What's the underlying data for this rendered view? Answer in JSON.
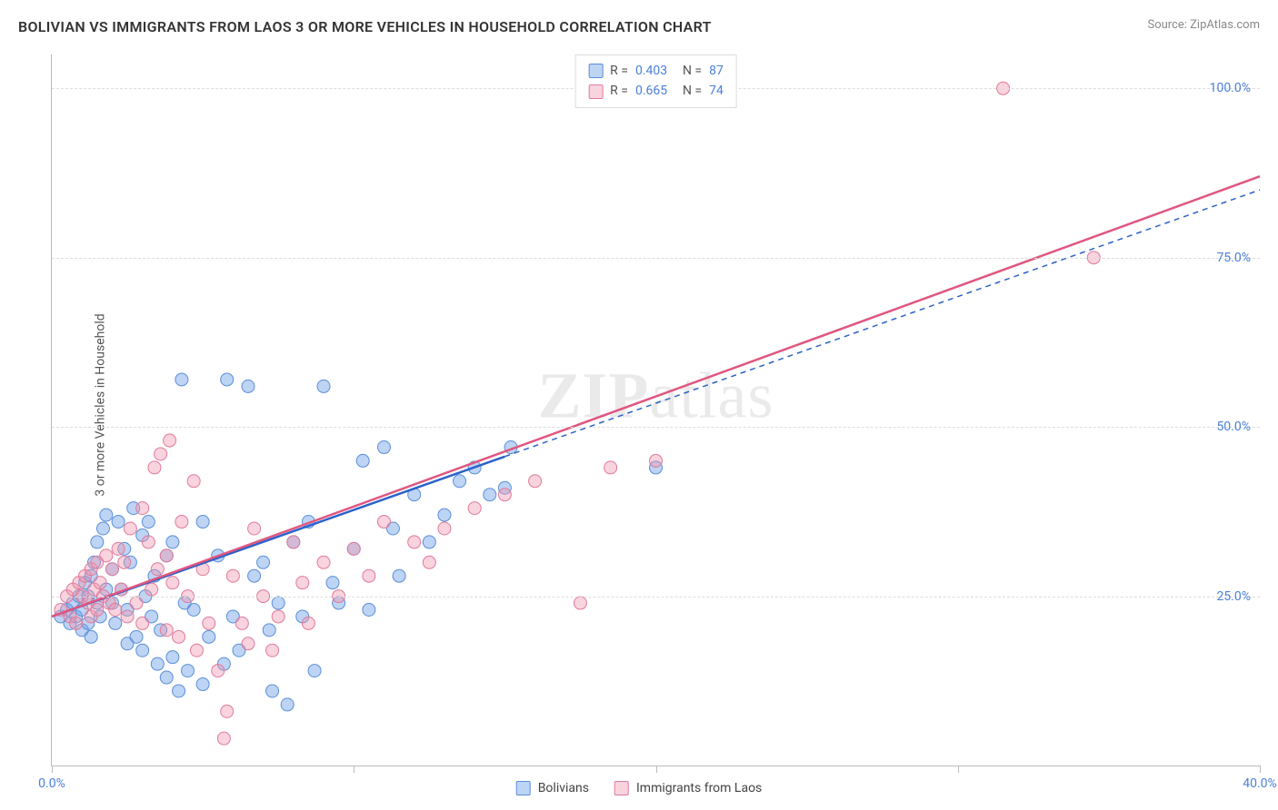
{
  "header": {
    "title": "BOLIVIAN VS IMMIGRANTS FROM LAOS 3 OR MORE VEHICLES IN HOUSEHOLD CORRELATION CHART",
    "source_label": "Source: ",
    "source_value": "ZipAtlas.com"
  },
  "ylabel": "3 or more Vehicles in Household",
  "watermark": {
    "bold": "ZIP",
    "rest": "atlas"
  },
  "axes": {
    "xlim": [
      0,
      40
    ],
    "ylim": [
      0,
      105
    ],
    "xtick_positions": [
      0,
      10,
      20,
      30,
      40
    ],
    "xtick_labels": [
      "0.0%",
      "",
      "",
      "",
      "40.0%"
    ],
    "yticks": [
      25,
      50,
      75,
      100
    ],
    "ytick_labels": [
      "25.0%",
      "50.0%",
      "75.0%",
      "100.0%"
    ],
    "tick_color": "#4a7fd8",
    "grid_color": "#dddddd",
    "axis_color": "#bbbbbb"
  },
  "series": [
    {
      "key": "bolivians",
      "label": "Bolivians",
      "R": "0.403",
      "N": "87",
      "fill": "rgba(110,160,230,0.45)",
      "stroke": "#5a8fd8",
      "line_color": "#2b62c9",
      "line_dash_after_x": 15,
      "trend": {
        "x1": 0,
        "y1": 22,
        "x2": 40,
        "y2": 85
      },
      "points": [
        [
          0.3,
          22
        ],
        [
          0.5,
          23
        ],
        [
          0.6,
          21
        ],
        [
          0.7,
          24
        ],
        [
          0.8,
          22
        ],
        [
          0.9,
          25
        ],
        [
          1.0,
          20
        ],
        [
          1.0,
          23
        ],
        [
          1.1,
          27
        ],
        [
          1.2,
          21
        ],
        [
          1.2,
          25
        ],
        [
          1.3,
          28
        ],
        [
          1.3,
          19
        ],
        [
          1.4,
          30
        ],
        [
          1.5,
          24
        ],
        [
          1.5,
          33
        ],
        [
          1.6,
          22
        ],
        [
          1.7,
          35
        ],
        [
          1.8,
          26
        ],
        [
          1.8,
          37
        ],
        [
          2.0,
          24
        ],
        [
          2.0,
          29
        ],
        [
          2.1,
          21
        ],
        [
          2.2,
          36
        ],
        [
          2.3,
          26
        ],
        [
          2.4,
          32
        ],
        [
          2.5,
          18
        ],
        [
          2.5,
          23
        ],
        [
          2.6,
          30
        ],
        [
          2.7,
          38
        ],
        [
          2.8,
          19
        ],
        [
          3.0,
          34
        ],
        [
          3.0,
          17
        ],
        [
          3.1,
          25
        ],
        [
          3.2,
          36
        ],
        [
          3.3,
          22
        ],
        [
          3.4,
          28
        ],
        [
          3.5,
          15
        ],
        [
          3.6,
          20
        ],
        [
          3.8,
          31
        ],
        [
          3.8,
          13
        ],
        [
          4.0,
          33
        ],
        [
          4.0,
          16
        ],
        [
          4.2,
          11
        ],
        [
          4.3,
          57
        ],
        [
          4.4,
          24
        ],
        [
          4.5,
          14
        ],
        [
          4.7,
          23
        ],
        [
          5.0,
          36
        ],
        [
          5.0,
          12
        ],
        [
          5.2,
          19
        ],
        [
          5.5,
          31
        ],
        [
          5.7,
          15
        ],
        [
          5.8,
          57
        ],
        [
          6.0,
          22
        ],
        [
          6.2,
          17
        ],
        [
          6.5,
          56
        ],
        [
          6.7,
          28
        ],
        [
          7.0,
          30
        ],
        [
          7.2,
          20
        ],
        [
          7.3,
          11
        ],
        [
          7.5,
          24
        ],
        [
          7.8,
          9
        ],
        [
          8.0,
          33
        ],
        [
          8.3,
          22
        ],
        [
          8.5,
          36
        ],
        [
          8.7,
          14
        ],
        [
          9.0,
          56
        ],
        [
          9.3,
          27
        ],
        [
          9.5,
          24
        ],
        [
          10.0,
          32
        ],
        [
          10.3,
          45
        ],
        [
          10.5,
          23
        ],
        [
          11.0,
          47
        ],
        [
          11.3,
          35
        ],
        [
          11.5,
          28
        ],
        [
          12.0,
          40
        ],
        [
          12.5,
          33
        ],
        [
          13.0,
          37
        ],
        [
          13.5,
          42
        ],
        [
          14.0,
          44
        ],
        [
          14.5,
          40
        ],
        [
          15.0,
          41
        ],
        [
          15.2,
          47
        ],
        [
          20.0,
          44
        ]
      ]
    },
    {
      "key": "laos",
      "label": "Immigrants from Laos",
      "R": "0.665",
      "N": "74",
      "fill": "rgba(240,150,175,0.42)",
      "stroke": "#e07a9a",
      "line_color": "#e0567f",
      "line_dash_after_x": null,
      "trend": {
        "x1": 0,
        "y1": 22,
        "x2": 40,
        "y2": 87
      },
      "points": [
        [
          0.3,
          23
        ],
        [
          0.5,
          25
        ],
        [
          0.6,
          22
        ],
        [
          0.7,
          26
        ],
        [
          0.8,
          21
        ],
        [
          0.9,
          27
        ],
        [
          1.0,
          25
        ],
        [
          1.1,
          28
        ],
        [
          1.2,
          24
        ],
        [
          1.3,
          29
        ],
        [
          1.3,
          22
        ],
        [
          1.4,
          26
        ],
        [
          1.5,
          30
        ],
        [
          1.5,
          23
        ],
        [
          1.6,
          27
        ],
        [
          1.7,
          25
        ],
        [
          1.8,
          31
        ],
        [
          1.9,
          24
        ],
        [
          2.0,
          29
        ],
        [
          2.1,
          23
        ],
        [
          2.2,
          32
        ],
        [
          2.3,
          26
        ],
        [
          2.4,
          30
        ],
        [
          2.5,
          22
        ],
        [
          2.6,
          35
        ],
        [
          2.8,
          24
        ],
        [
          3.0,
          38
        ],
        [
          3.0,
          21
        ],
        [
          3.2,
          33
        ],
        [
          3.3,
          26
        ],
        [
          3.4,
          44
        ],
        [
          3.5,
          29
        ],
        [
          3.6,
          46
        ],
        [
          3.8,
          31
        ],
        [
          3.8,
          20
        ],
        [
          3.9,
          48
        ],
        [
          4.0,
          27
        ],
        [
          4.2,
          19
        ],
        [
          4.3,
          36
        ],
        [
          4.5,
          25
        ],
        [
          4.7,
          42
        ],
        [
          4.8,
          17
        ],
        [
          5.0,
          29
        ],
        [
          5.2,
          21
        ],
        [
          5.5,
          14
        ],
        [
          5.7,
          4
        ],
        [
          5.8,
          8
        ],
        [
          6.0,
          28
        ],
        [
          6.3,
          21
        ],
        [
          6.5,
          18
        ],
        [
          6.7,
          35
        ],
        [
          7.0,
          25
        ],
        [
          7.3,
          17
        ],
        [
          7.5,
          22
        ],
        [
          8.0,
          33
        ],
        [
          8.3,
          27
        ],
        [
          8.5,
          21
        ],
        [
          9.0,
          30
        ],
        [
          9.5,
          25
        ],
        [
          10.0,
          32
        ],
        [
          10.5,
          28
        ],
        [
          11.0,
          36
        ],
        [
          12.0,
          33
        ],
        [
          12.5,
          30
        ],
        [
          13.0,
          35
        ],
        [
          14.0,
          38
        ],
        [
          15.0,
          40
        ],
        [
          16.0,
          42
        ],
        [
          17.5,
          24
        ],
        [
          18.5,
          44
        ],
        [
          20.0,
          45
        ],
        [
          31.5,
          100
        ],
        [
          34.5,
          75
        ]
      ]
    }
  ],
  "legend_top": {
    "r_label": "R =",
    "n_label": "N =",
    "value_color": "#4a7fd8",
    "text_color": "#555555"
  },
  "legend_bottom_text_color": "#444444",
  "marker_radius": 7
}
